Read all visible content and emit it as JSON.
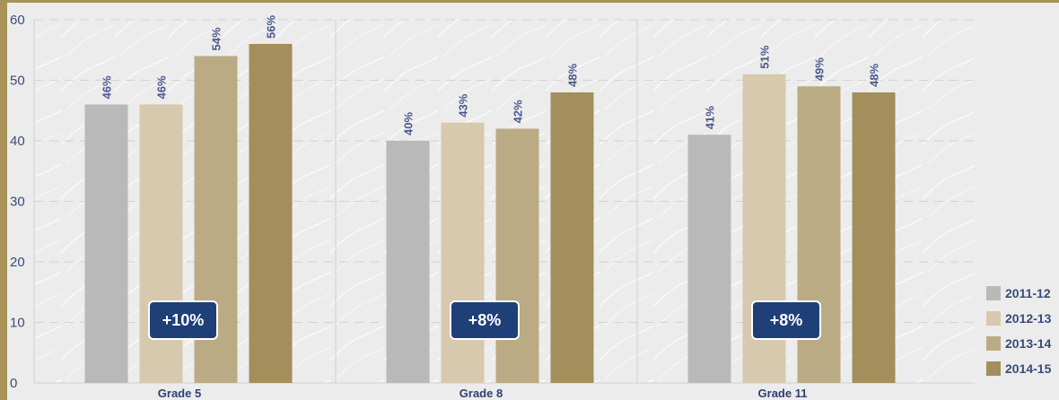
{
  "chart_data": {
    "type": "bar",
    "categories": [
      "Grade 5",
      "Grade 8",
      "Grade 11"
    ],
    "series": [
      {
        "name": "2011-12",
        "color": "#b9b9b9",
        "values": [
          46,
          40,
          41
        ]
      },
      {
        "name": "2012-13",
        "color": "#d6c9ae",
        "values": [
          46,
          43,
          51
        ]
      },
      {
        "name": "2013-14",
        "color": "#bbab84",
        "values": [
          54,
          42,
          49
        ]
      },
      {
        "name": "2014-15",
        "color": "#a38e5c",
        "values": [
          56,
          48,
          48
        ]
      }
    ],
    "value_labels": [
      [
        "46%",
        "46%",
        "54%",
        "56%"
      ],
      [
        "40%",
        "43%",
        "42%",
        "48%"
      ],
      [
        "41%",
        "51%",
        "49%",
        "48%"
      ]
    ],
    "annotations": [
      "+10%",
      "+8%",
      "+8%"
    ],
    "yticks": [
      0,
      10,
      20,
      30,
      40,
      50,
      60
    ],
    "ylim": [
      0,
      60
    ],
    "xlabel": "",
    "ylabel": "",
    "grid": true,
    "legend_position": "bottom-right",
    "colors": {
      "frame": "#a89257",
      "background": "#ececec",
      "badge_fill": "#1f3f78",
      "text": "#3a4a7a"
    }
  }
}
